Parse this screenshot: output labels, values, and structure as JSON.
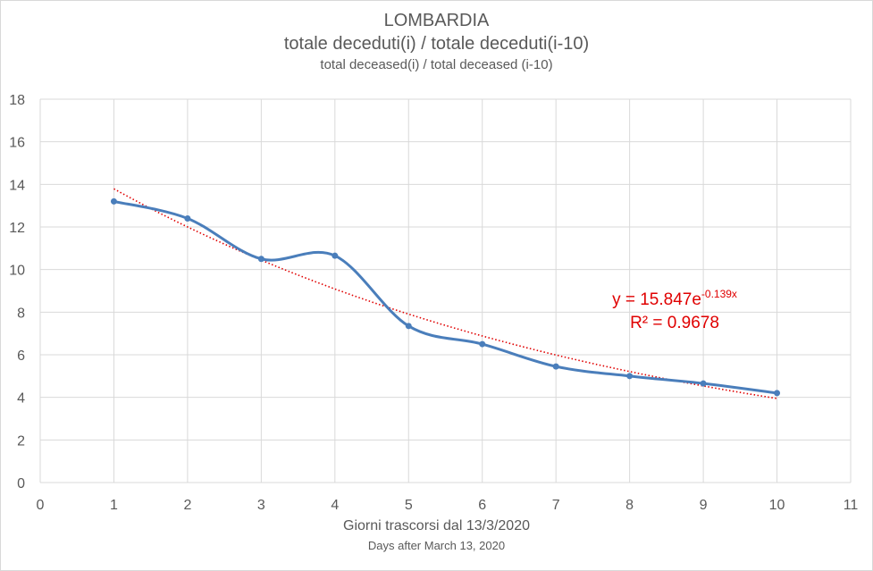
{
  "chart_data": {
    "type": "scatter",
    "title": "LOMBARDIA",
    "subtitle": "totale deceduti(i) / totale deceduti(i-10)",
    "subtitle2": "total deceased(i) / total deceased (i-10)",
    "xlabel": "Giorni trascorsi dal 13/3/2020",
    "xlabel2": "Days after March 13, 2020",
    "ylabel": "",
    "xlim": [
      0,
      11
    ],
    "ylim": [
      0,
      18
    ],
    "x_ticks": [
      0,
      1,
      2,
      3,
      4,
      5,
      6,
      7,
      8,
      9,
      10,
      11
    ],
    "y_ticks": [
      0,
      2,
      4,
      6,
      8,
      10,
      12,
      14,
      16,
      18
    ],
    "grid": true,
    "series": [
      {
        "x": [
          1,
          2,
          3,
          4,
          5,
          6,
          7,
          8,
          9,
          10
        ],
        "y": [
          13.2,
          12.4,
          10.5,
          10.65,
          7.35,
          6.5,
          5.45,
          5.0,
          4.65,
          4.2
        ],
        "color": "#4a7ebb",
        "style": "smoothed line with markers"
      }
    ],
    "trendline": {
      "type": "exponential",
      "a": 15.847,
      "b": -0.139,
      "color": "#e00000",
      "style": "dotted"
    },
    "annotation": {
      "equation_prefix": "y = 15.847e",
      "equation_exponent": "-0.139x",
      "r_squared": "R² = 0.9678"
    }
  }
}
